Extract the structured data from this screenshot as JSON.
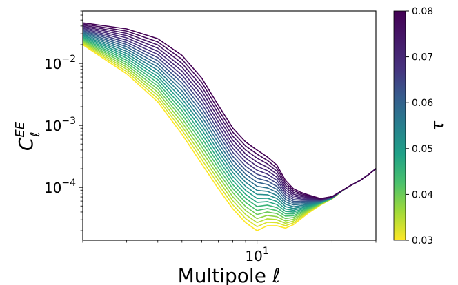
{
  "chart_data": {
    "type": "line",
    "title": "",
    "xlabel": "Multipole ℓ",
    "ylabel": "C",
    "ylabel_sup": "EE",
    "ylabel_sub": "ℓ",
    "xscale": "log",
    "yscale": "log",
    "xlim": [
      2,
      30
    ],
    "ylim": [
      1.4e-05,
      0.07
    ],
    "grid": false,
    "x_tick_labels": [
      {
        "value": 10,
        "base": "10",
        "exp": "1"
      }
    ],
    "y_tick_labels": [
      {
        "value": 0.0001,
        "base": "10",
        "exp": "−4"
      },
      {
        "value": 0.001,
        "base": "10",
        "exp": "−3"
      },
      {
        "value": 0.01,
        "base": "10",
        "exp": "−2"
      }
    ],
    "colorbar": {
      "label": "τ",
      "colormap": "viridis_r",
      "range": [
        0.03,
        0.08
      ],
      "ticks": [
        {
          "value": 0.03,
          "label": "0.03"
        },
        {
          "value": 0.04,
          "label": "0.04"
        },
        {
          "value": 0.05,
          "label": "0.05"
        },
        {
          "value": 0.06,
          "label": "0.06"
        },
        {
          "value": 0.07,
          "label": "0.07"
        },
        {
          "value": 0.08,
          "label": "0.08"
        }
      ]
    },
    "x": [
      2,
      3,
      4,
      5,
      6,
      7,
      8,
      9,
      10,
      11,
      12,
      13,
      14,
      15,
      16,
      18,
      20,
      22,
      24,
      26,
      28,
      30
    ],
    "series_range": {
      "tau_min": 0.03,
      "tau_max": 0.08,
      "count": 21
    },
    "series_low_tau": {
      "tau": 0.03,
      "values": [
        0.02,
        0.0068,
        0.0024,
        0.00072,
        0.00024,
        9.5e-05,
        4.5e-05,
        2.7e-05,
        2e-05,
        2.4e-05,
        2.4e-05,
        2.2e-05,
        2.5e-05,
        3.1e-05,
        3.8e-05,
        5.2e-05,
        6.5e-05,
        8.8e-05,
        0.00011,
        0.00013,
        0.00016,
        0.0002
      ]
    },
    "series_high_tau": {
      "tau": 0.08,
      "values": [
        0.045,
        0.036,
        0.025,
        0.0135,
        0.0058,
        0.0021,
        0.0009,
        0.00054,
        0.0004,
        0.00031,
        0.00023,
        0.00013,
        9.5e-05,
        8.3e-05,
        7.6e-05,
        6.6e-05,
        7.1e-05,
        8.9e-05,
        0.00011,
        0.00013,
        0.00016,
        0.0002
      ]
    }
  }
}
